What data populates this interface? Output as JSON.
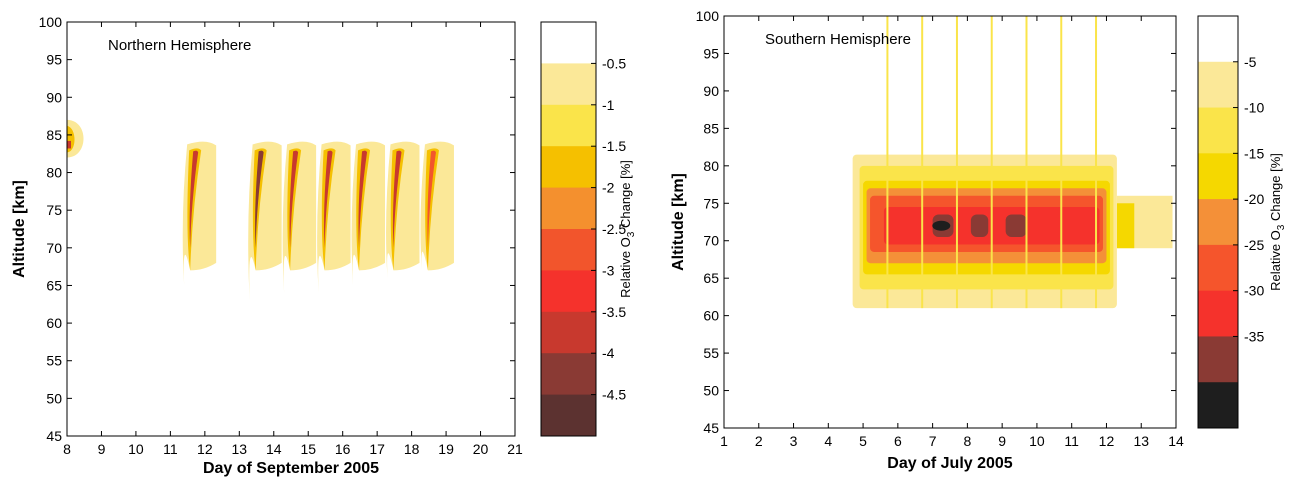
{
  "chart_data": [
    {
      "type": "heatmap",
      "title": "Northern Hemisphere",
      "xlabel": "Day of September 2005",
      "ylabel": "Altitude [km]",
      "xlim": [
        8,
        21
      ],
      "ylim": [
        45,
        100
      ],
      "xticks": [
        8,
        9,
        10,
        11,
        12,
        13,
        14,
        15,
        16,
        17,
        18,
        19,
        20,
        21
      ],
      "yticks": [
        45,
        50,
        55,
        60,
        65,
        70,
        75,
        80,
        85,
        90,
        95,
        100
      ],
      "colorbar": {
        "label_main": "Relative O",
        "label_sub": "3",
        "label_tail": " Change [%]",
        "ticks": [
          "-0.5",
          "-1",
          "-1.5",
          "-2",
          "-2.5",
          "-3",
          "-3.5",
          "-4",
          "-4.5"
        ],
        "colors": [
          "#fbe898",
          "#fae44a",
          "#f5c000",
          "#f4902e",
          "#f2552c",
          "#f5322c",
          "#c8392e",
          "#8a3a34",
          "#5c3230"
        ]
      },
      "features": [
        {
          "kind": "onset",
          "day": 8.0,
          "alt_low": 82,
          "alt_high": 87,
          "min_change": -3.5
        },
        {
          "kind": "pulse",
          "day": 11.4,
          "alt_low": 65,
          "alt_high": 84,
          "min_change": -3.5
        },
        {
          "kind": "pulse",
          "day": 13.3,
          "alt_low": 63,
          "alt_high": 84,
          "min_change": -4
        },
        {
          "kind": "pulse",
          "day": 14.3,
          "alt_low": 64,
          "alt_high": 84,
          "min_change": -3.5
        },
        {
          "kind": "pulse",
          "day": 15.3,
          "alt_low": 64,
          "alt_high": 84,
          "min_change": -3.5
        },
        {
          "kind": "pulse",
          "day": 16.3,
          "alt_low": 65,
          "alt_high": 84,
          "min_change": -3.5
        },
        {
          "kind": "pulse",
          "day": 17.3,
          "alt_low": 66,
          "alt_high": 84,
          "min_change": -3.5
        },
        {
          "kind": "pulse",
          "day": 18.3,
          "alt_low": 67,
          "alt_high": 84,
          "min_change": -3
        }
      ]
    },
    {
      "type": "heatmap",
      "title": "Southern Hemisphere",
      "xlabel": "Day of July 2005",
      "ylabel": "Altitude [km]",
      "xlim": [
        1,
        14
      ],
      "ylim": [
        45,
        100
      ],
      "xticks": [
        1,
        2,
        3,
        4,
        5,
        6,
        7,
        8,
        9,
        10,
        11,
        12,
        13,
        14
      ],
      "yticks": [
        45,
        50,
        55,
        60,
        65,
        70,
        75,
        80,
        85,
        90,
        95,
        100
      ],
      "colorbar": {
        "label_main": "Relative O",
        "label_sub": "3",
        "label_tail": " Change [%]",
        "ticks": [
          "-5",
          "-10",
          "-15",
          "-20",
          "-25",
          "-30",
          "-35"
        ],
        "colors": [
          "#fbe898",
          "#fae44a",
          "#f5d800",
          "#f49038",
          "#f5552c",
          "#f5322c",
          "#8a3a34",
          "#1e1e1e"
        ]
      },
      "features": [
        {
          "kind": "block",
          "day_start": 4.7,
          "day_end": 12.3,
          "alt_low": 61,
          "alt_high": 81,
          "min_change": -35
        },
        {
          "kind": "tail",
          "day_start": 12.3,
          "day_end": 13.9,
          "alt_low": 69,
          "alt_high": 76,
          "min_change": -10
        },
        {
          "kind": "spike",
          "day": 5.7
        },
        {
          "kind": "spike",
          "day": 6.7
        },
        {
          "kind": "spike",
          "day": 7.7
        },
        {
          "kind": "spike",
          "day": 8.7
        },
        {
          "kind": "spike",
          "day": 9.7
        },
        {
          "kind": "spike",
          "day": 10.7
        },
        {
          "kind": "spike",
          "day": 11.7
        }
      ]
    }
  ]
}
